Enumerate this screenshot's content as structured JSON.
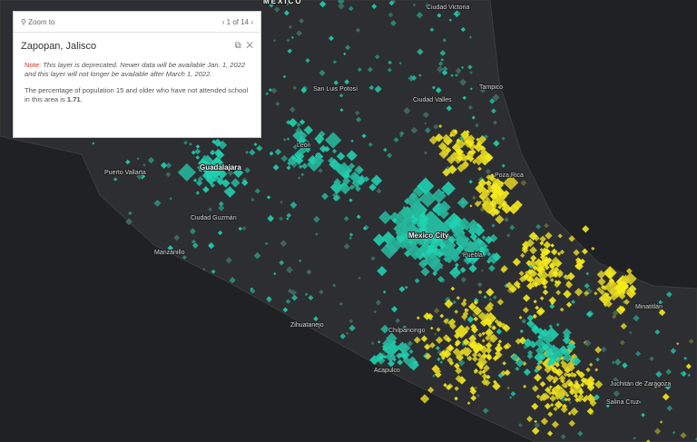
{
  "popup": {
    "zoom_to": "Zoom to",
    "pager": "1 of 14",
    "title": "Zapopan, Jalisco",
    "note_label": "Note:",
    "note_text": "This layer is deprecated. Newer data will be available Jan. 1, 2022 and this layer will not longer be available after March 1, 2022.",
    "description": "The percentage of population 15 and older who have not attended school in this area is ",
    "value": "1.71",
    "description_end": "."
  },
  "map": {
    "labels": [
      {
        "text": "MEXICO"
      },
      {
        "text": "Ciudad Victoria"
      },
      {
        "text": "San Luis Potosí"
      },
      {
        "text": "Ciudad Valles"
      },
      {
        "text": "Tampico"
      },
      {
        "text": "León"
      },
      {
        "text": "Guadalajara"
      },
      {
        "text": "Puerto Vallarta"
      },
      {
        "text": "Ciudad Guzmán"
      },
      {
        "text": "Manzanillo"
      },
      {
        "text": "Mexico City"
      },
      {
        "text": "Puebla"
      },
      {
        "text": "Zihuatanejo"
      },
      {
        "text": "Chilpancingo"
      },
      {
        "text": "Acapulco"
      },
      {
        "text": "Poza Rica"
      },
      {
        "text": "Minatitlán"
      },
      {
        "text": "Juchitán de Zaragoza"
      },
      {
        "text": "Salina Cruz"
      }
    ]
  }
}
